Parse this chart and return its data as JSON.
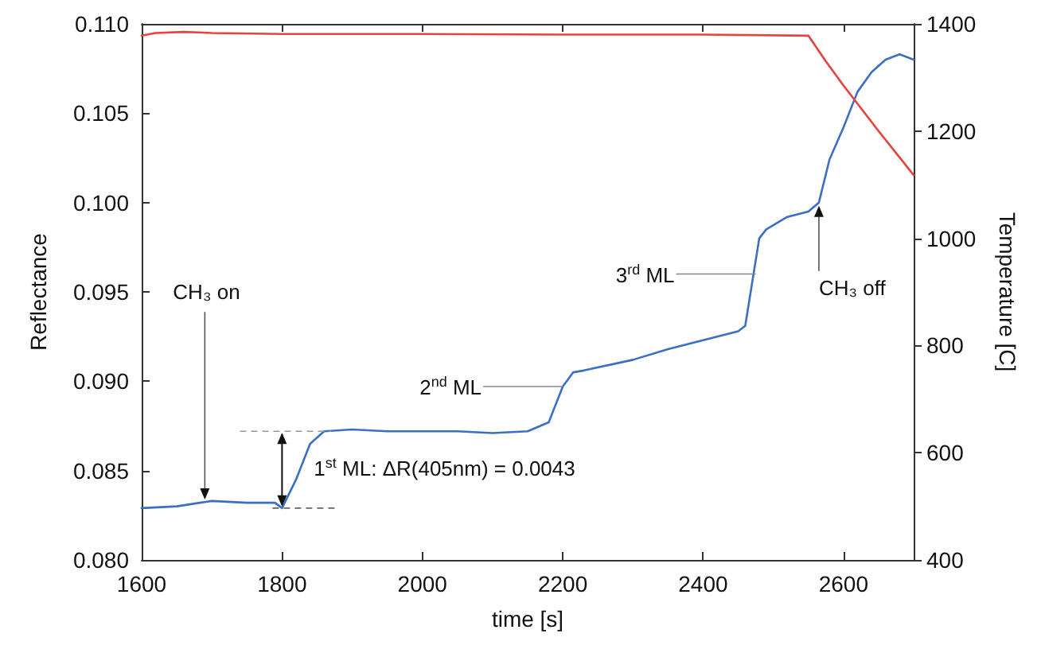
{
  "chart_data": {
    "type": "line",
    "xlabel": "time [s]",
    "ylabel": "Reflectance",
    "y2label": "Temperature [C]",
    "xlim": [
      1600,
      2700
    ],
    "xticks": [
      1600,
      1800,
      2000,
      2200,
      2400,
      2600
    ],
    "ylim": [
      0.08,
      0.11
    ],
    "yticks": [
      {
        "value": 0.08,
        "label": "0.080"
      },
      {
        "value": 0.085,
        "label": "0.085"
      },
      {
        "value": 0.09,
        "label": "0.090"
      },
      {
        "value": 0.095,
        "label": "0.095"
      },
      {
        "value": 0.1,
        "label": "0.100"
      },
      {
        "value": 0.105,
        "label": "0.105"
      },
      {
        "value": 0.11,
        "label": "0.110"
      }
    ],
    "y2lim": [
      400,
      1400
    ],
    "y2ticks": [
      400,
      600,
      800,
      1000,
      1200,
      1400
    ],
    "grid": false,
    "marker": "none",
    "line_style": "solid",
    "series": [
      {
        "color": "#3a6fc4",
        "x": [
          1600,
          1650,
          1700,
          1750,
          1790,
          1800,
          1820,
          1840,
          1860,
          1900,
          1950,
          2000,
          2050,
          2100,
          2150,
          2180,
          2200,
          2215,
          2230,
          2300,
          2350,
          2400,
          2450,
          2460,
          2480,
          2490,
          2520,
          2550,
          2565,
          2580,
          2600,
          2620,
          2640,
          2660,
          2680,
          2700
        ],
        "values": [
          0.0829,
          0.083,
          0.0833,
          0.0832,
          0.0832,
          0.0829,
          0.0845,
          0.0865,
          0.0872,
          0.0873,
          0.0872,
          0.0872,
          0.0872,
          0.0871,
          0.0872,
          0.0877,
          0.0897,
          0.0905,
          0.0906,
          0.0912,
          0.0918,
          0.0923,
          0.0928,
          0.0931,
          0.098,
          0.0985,
          0.0992,
          0.0995,
          0.1,
          0.1024,
          0.1042,
          0.1062,
          0.1073,
          0.108,
          0.1083,
          0.108
        ]
      },
      {
        "color": "#e8423c",
        "axis": "y2",
        "x": [
          1600,
          1620,
          1660,
          1700,
          1800,
          2000,
          2200,
          2400,
          2550,
          2575,
          2600,
          2650,
          2700
        ],
        "values": [
          1378,
          1383,
          1385,
          1383,
          1381,
          1381,
          1380,
          1380,
          1378,
          1330,
          1285,
          1200,
          1118
        ]
      }
    ],
    "annotations": [
      {
        "text": "CH₃ on",
        "x": 1690,
        "y": 0.0832
      },
      "1$^{st}$ ML: ΔR(405nm) = 0.0043",
      {
        "text": "2$^{nd}$ ML",
        "x": 2200,
        "y": 0.0897
      },
      {
        "text": "3$^{rd}$ ML",
        "x": 2475,
        "y": 0.096
      },
      {
        "text": "CH₃ off",
        "x": 2565,
        "y": 0.1
      }
    ]
  }
}
